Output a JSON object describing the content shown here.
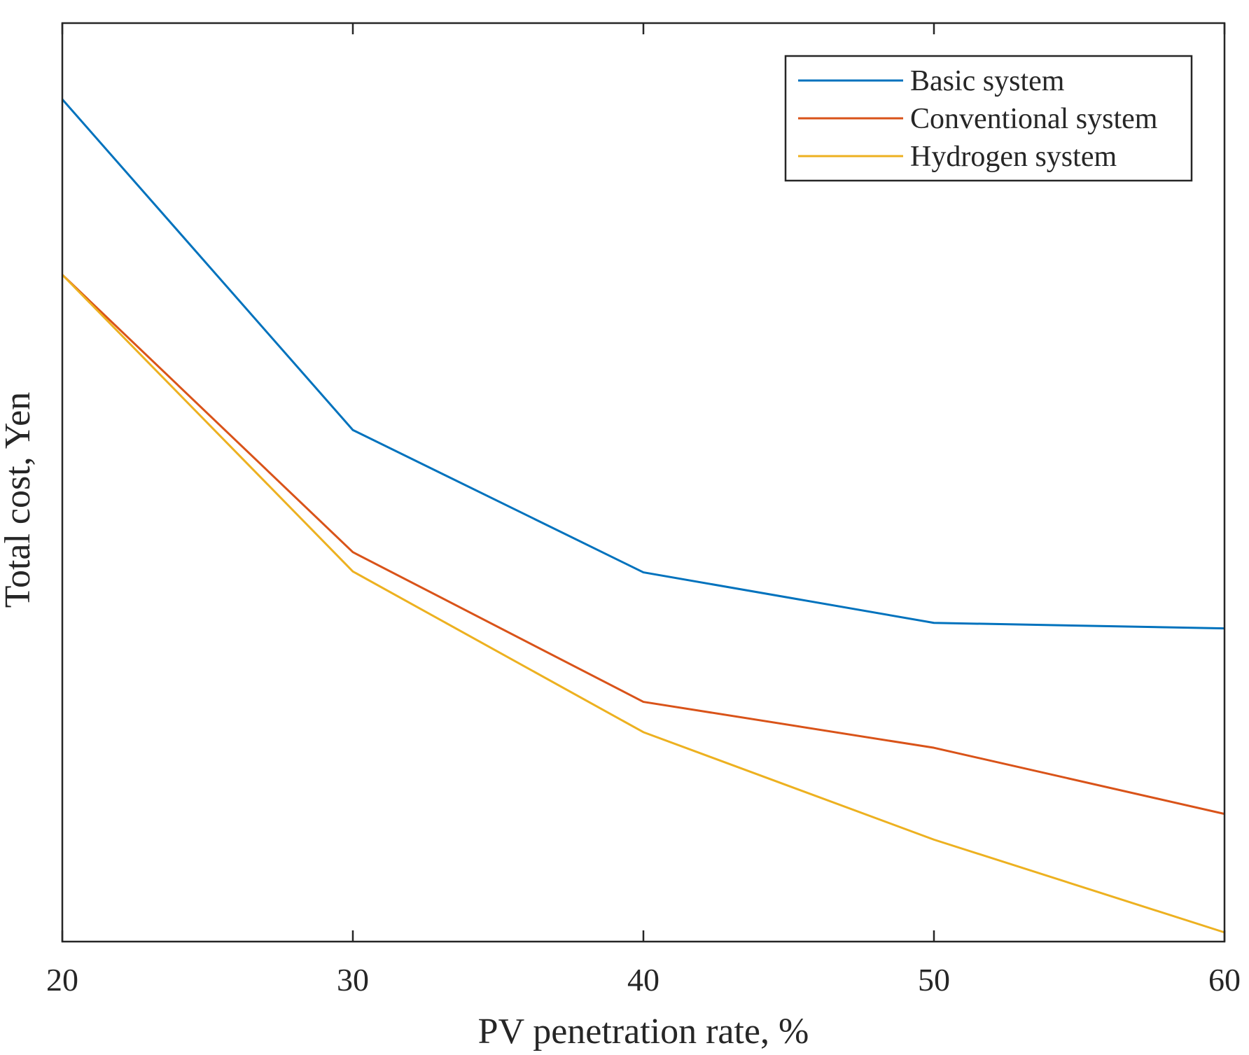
{
  "chart_data": {
    "type": "line",
    "title": "",
    "xlabel": "PV penetration rate, %",
    "ylabel": "Total cost, Yen",
    "x": [
      20,
      30,
      40,
      50,
      60
    ],
    "xlim": [
      20,
      60
    ],
    "ylim": [
      0,
      100
    ],
    "xticks": [
      "20",
      "30",
      "40",
      "50",
      "60"
    ],
    "yticks": [],
    "grid": false,
    "legend_position": "top-right",
    "series": [
      {
        "name": "Basic system",
        "color": "#0072BD",
        "values": [
          91.7,
          55.7,
          40.2,
          34.7,
          34.1
        ]
      },
      {
        "name": "Conventional system",
        "color": "#D95319",
        "values": [
          72.6,
          42.4,
          26.1,
          21.1,
          13.9
        ]
      },
      {
        "name": "Hydrogen system",
        "color": "#EDB120",
        "values": [
          72.6,
          40.3,
          22.8,
          11.1,
          1.0
        ]
      }
    ]
  }
}
